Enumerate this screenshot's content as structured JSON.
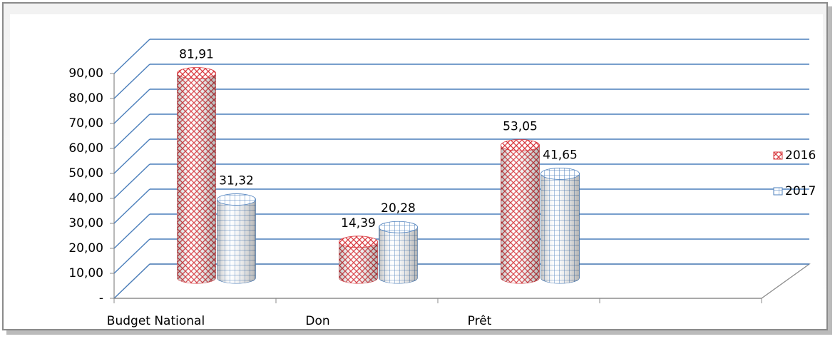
{
  "chart_data": {
    "type": "bar3d",
    "categories": [
      "Budget National",
      "Don",
      "Prêt",
      null
    ],
    "series": [
      {
        "name": "2016",
        "color": "#d9383e",
        "values": [
          81.91,
          14.39,
          53.05,
          null
        ],
        "value_labels": [
          "81,91",
          "14,39",
          "53,05",
          null
        ]
      },
      {
        "name": "2017",
        "color": "#4f81bd",
        "values": [
          31.32,
          20.28,
          41.65,
          null
        ],
        "value_labels": [
          "31,32",
          "20,28",
          "41,65",
          null
        ]
      }
    ],
    "ylim": [
      0,
      90
    ],
    "yticks": [
      {
        "value": 0,
        "label": "-"
      },
      {
        "value": 10,
        "label": "10,00"
      },
      {
        "value": 20,
        "label": "20,00"
      },
      {
        "value": 30,
        "label": "30,00"
      },
      {
        "value": 40,
        "label": "40,00"
      },
      {
        "value": 50,
        "label": "50,00"
      },
      {
        "value": 60,
        "label": "60,00"
      },
      {
        "value": 70,
        "label": "70,00"
      },
      {
        "value": 80,
        "label": "80,00"
      },
      {
        "value": 90,
        "label": "90,00"
      }
    ],
    "grid": true,
    "legend": "right"
  }
}
